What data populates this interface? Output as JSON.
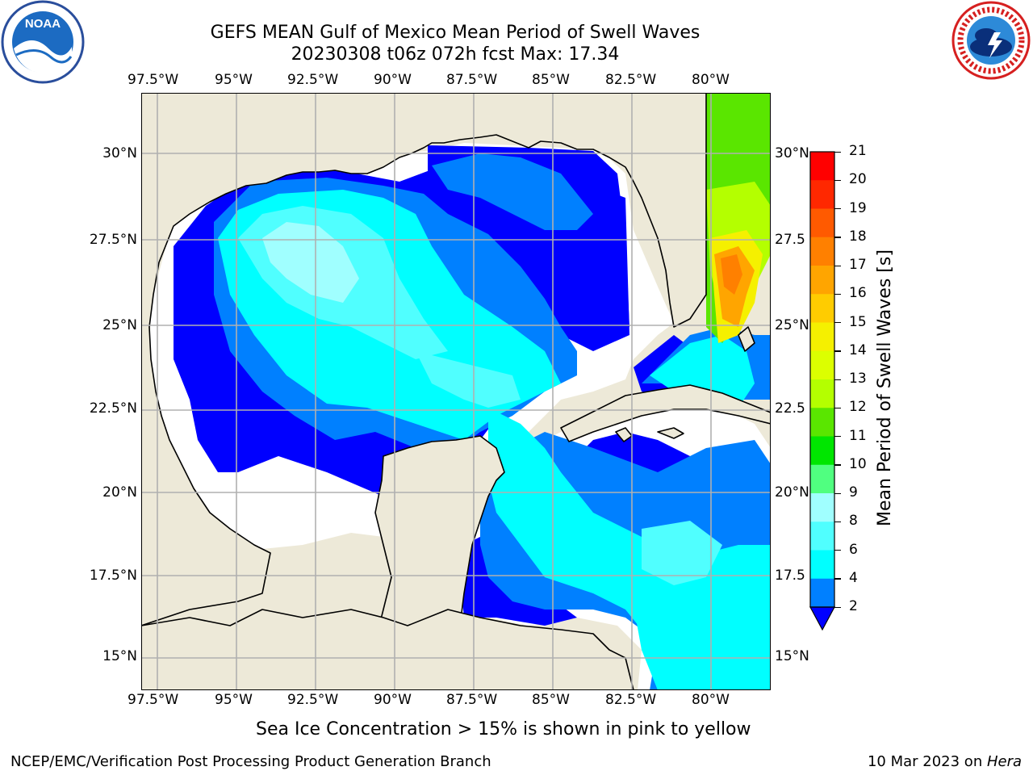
{
  "header": {
    "title_line1": "GEFS MEAN Gulf of Mexico Mean Period of Swell Waves",
    "title_line2": "20230308 t06z 072h fcst   Max: 17.34"
  },
  "logos": {
    "left_name": "noaa-logo",
    "left_text": "NOAA",
    "right_name": "national-weather-service-logo"
  },
  "map": {
    "lon_labels": [
      "97.5°W",
      "95°W",
      "92.5°W",
      "90°W",
      "87.5°W",
      "85°W",
      "82.5°W",
      "80°W"
    ],
    "lat_labels_left": [
      "30°N",
      "27.5°N",
      "25°N",
      "22.5°N",
      "20°N",
      "17.5°N",
      "15°N"
    ],
    "lat_labels_right": [
      "30°N",
      "27.5",
      "25°N",
      "22.5",
      "20°N",
      "17.5",
      "15°N"
    ],
    "colors": {
      "land": "#ede9d8",
      "grid": "#b0b0b0",
      "coast": "#000000"
    }
  },
  "colorbar": {
    "label": "Mean Period of Swell Waves [s]",
    "ticks": [
      "21",
      "20",
      "19",
      "18",
      "17",
      "16",
      "15",
      "14",
      "13",
      "12",
      "11",
      "10",
      "9",
      "8",
      "6",
      "4",
      "2"
    ],
    "colors": [
      "#ff0000",
      "#ff2800",
      "#ff5a00",
      "#ff8000",
      "#ffa500",
      "#ffcc00",
      "#f5f000",
      "#dcff00",
      "#b4ff00",
      "#5ae600",
      "#00e600",
      "#50ff80",
      "#a0ffff",
      "#50ffff",
      "#00ffff",
      "#0080ff",
      "#0000ff"
    ]
  },
  "caption": "Sea Ice Concentration > 15% is shown in pink to yellow",
  "footer": {
    "left": "NCEP/EMC/Verification Post Processing Product Generation Branch",
    "right_date": "10 Mar 2023 on ",
    "right_host": "Hera"
  }
}
